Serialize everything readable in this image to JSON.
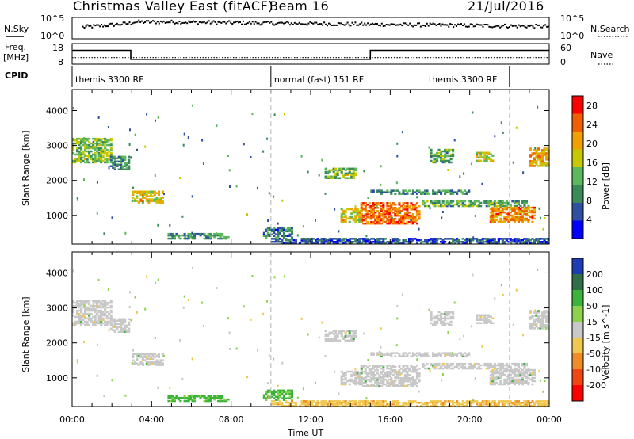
{
  "header": {
    "title": "Christmas Valley East (fitACF)",
    "beam": "Beam 16",
    "date": "21/Jul/2016"
  },
  "top_panels": {
    "nsky_label": "N.Sky",
    "nsearch_label": "N.Search",
    "freq_label_line1": "Freq.",
    "freq_label_line2": "[MHz]",
    "nave_label": "Nave",
    "cpid_label": "CPID",
    "left_ticks_noise": [
      "10^5",
      "10^0"
    ],
    "right_ticks_noise": [
      "10^5",
      "10^0"
    ],
    "left_ticks_freq": [
      "18",
      "8"
    ],
    "right_ticks_nave": [
      "60",
      "0"
    ]
  },
  "cpid_segments": [
    {
      "label": "themis 3300 RF",
      "start_hour": 0,
      "end_hour": 10
    },
    {
      "label": "normal (fast) 151 RF",
      "start_hour": 10,
      "end_hour": 22
    },
    {
      "label": "themis 3300 RF",
      "start_hour": 22,
      "end_hour": 24
    }
  ],
  "colors": {
    "power": [
      "#0000ff",
      "#2f4fa0",
      "#3a8a5a",
      "#5cb85c",
      "#c8c800",
      "#f0a000",
      "#f06000",
      "#ff0000"
    ],
    "velocity": [
      "#1e3cb4",
      "#2f6e46",
      "#3cb43c",
      "#8cd24c",
      "#c8c8c8",
      "#f0c850",
      "#f08c28",
      "#f04614",
      "#ff0000"
    ],
    "ground_scatter": "#c8c8c8",
    "dashed_lines": "#b4b4b4"
  },
  "chart_data": [
    {
      "type": "heatmap",
      "quantity": "power",
      "xlabel": "",
      "ylabel": "Slant Range [km]",
      "x_range_hours": [
        0,
        24
      ],
      "ylim": [
        180,
        4600
      ],
      "yticks": [
        1000,
        2000,
        3000,
        4000
      ],
      "colorbar_label": "Power [dB]",
      "colorbar_ticks": [
        4,
        8,
        12,
        16,
        20,
        24,
        28
      ],
      "colorbar_range": [
        0,
        30
      ],
      "echo_regions": [
        {
          "t0": 0.0,
          "t1": 2.0,
          "r0": 2500,
          "r1": 3200,
          "db": 14
        },
        {
          "t0": 1.9,
          "t1": 2.9,
          "r0": 2300,
          "r1": 2700,
          "db": 10
        },
        {
          "t0": 3.0,
          "t1": 4.5,
          "r0": 1350,
          "r1": 1700,
          "db": 18
        },
        {
          "t0": 4.8,
          "t1": 7.8,
          "r0": 320,
          "r1": 500,
          "db": 10
        },
        {
          "t0": 9.6,
          "t1": 11.0,
          "r0": 350,
          "r1": 650,
          "db": 8
        },
        {
          "t0": 10.0,
          "t1": 24.0,
          "r0": 180,
          "r1": 330,
          "db": 6
        },
        {
          "t0": 12.7,
          "t1": 14.2,
          "r0": 2050,
          "r1": 2350,
          "db": 14
        },
        {
          "t0": 13.5,
          "t1": 14.5,
          "r0": 800,
          "r1": 1200,
          "db": 18
        },
        {
          "t0": 14.5,
          "t1": 17.5,
          "r0": 750,
          "r1": 1350,
          "db": 24
        },
        {
          "t0": 15.0,
          "t1": 20.0,
          "r0": 1600,
          "r1": 1700,
          "db": 10
        },
        {
          "t0": 17.5,
          "t1": 23.0,
          "r0": 1250,
          "r1": 1400,
          "db": 12
        },
        {
          "t0": 18.0,
          "t1": 19.2,
          "r0": 2500,
          "r1": 2900,
          "db": 12
        },
        {
          "t0": 20.3,
          "t1": 21.2,
          "r0": 2550,
          "r1": 2800,
          "db": 16
        },
        {
          "t0": 21.0,
          "t1": 23.3,
          "r0": 800,
          "r1": 1250,
          "db": 22
        },
        {
          "t0": 23.0,
          "t1": 24.0,
          "r0": 2400,
          "r1": 2900,
          "db": 20
        }
      ]
    },
    {
      "type": "heatmap",
      "quantity": "velocity",
      "xlabel": "Time UT",
      "ylabel": "Slant Range [km]",
      "x_range_hours": [
        0,
        24
      ],
      "xtick_labels": [
        "00:00",
        "04:00",
        "08:00",
        "12:00",
        "16:00",
        "20:00",
        "00:00"
      ],
      "ylim": [
        180,
        4600
      ],
      "yticks": [
        1000,
        2000,
        3000,
        4000
      ],
      "colorbar_label": "Velocity [m s^-1]",
      "colorbar_ticks": [
        200,
        100,
        50,
        15,
        -15,
        -50,
        -100,
        -200
      ],
      "echo_regions": [
        {
          "t0": 0.0,
          "t1": 2.0,
          "r0": 2500,
          "r1": 3200,
          "vel": 0
        },
        {
          "t0": 1.9,
          "t1": 2.9,
          "r0": 2300,
          "r1": 2700,
          "vel": 0
        },
        {
          "t0": 3.0,
          "t1": 4.5,
          "r0": 1350,
          "r1": 1700,
          "vel": 0
        },
        {
          "t0": 4.8,
          "t1": 7.8,
          "r0": 320,
          "r1": 500,
          "vel": 60
        },
        {
          "t0": 9.6,
          "t1": 11.0,
          "r0": 350,
          "r1": 650,
          "vel": 60
        },
        {
          "t0": 10.0,
          "t1": 24.0,
          "r0": 180,
          "r1": 330,
          "vel": -40
        },
        {
          "t0": 12.7,
          "t1": 14.2,
          "r0": 2050,
          "r1": 2350,
          "vel": 0
        },
        {
          "t0": 13.5,
          "t1": 14.5,
          "r0": 800,
          "r1": 1200,
          "vel": 0
        },
        {
          "t0": 14.5,
          "t1": 17.5,
          "r0": 750,
          "r1": 1350,
          "vel": 0
        },
        {
          "t0": 15.0,
          "t1": 20.0,
          "r0": 1600,
          "r1": 1700,
          "vel": 0
        },
        {
          "t0": 17.5,
          "t1": 23.0,
          "r0": 1250,
          "r1": 1400,
          "vel": 0
        },
        {
          "t0": 18.0,
          "t1": 19.2,
          "r0": 2500,
          "r1": 2900,
          "vel": 0
        },
        {
          "t0": 20.3,
          "t1": 21.2,
          "r0": 2550,
          "r1": 2800,
          "vel": 0
        },
        {
          "t0": 21.0,
          "t1": 23.3,
          "r0": 800,
          "r1": 1250,
          "vel": 0
        },
        {
          "t0": 23.0,
          "t1": 24.0,
          "r0": 2400,
          "r1": 2900,
          "vel": 0
        }
      ]
    }
  ],
  "frequency_series": {
    "hours": [
      0,
      2.95,
      2.95,
      15.0,
      15.0,
      24
    ],
    "mhz": [
      15,
      15,
      10.5,
      10.5,
      15,
      15
    ]
  },
  "nave_series": {
    "hours": [
      0,
      24
    ],
    "value": [
      20,
      20
    ]
  }
}
